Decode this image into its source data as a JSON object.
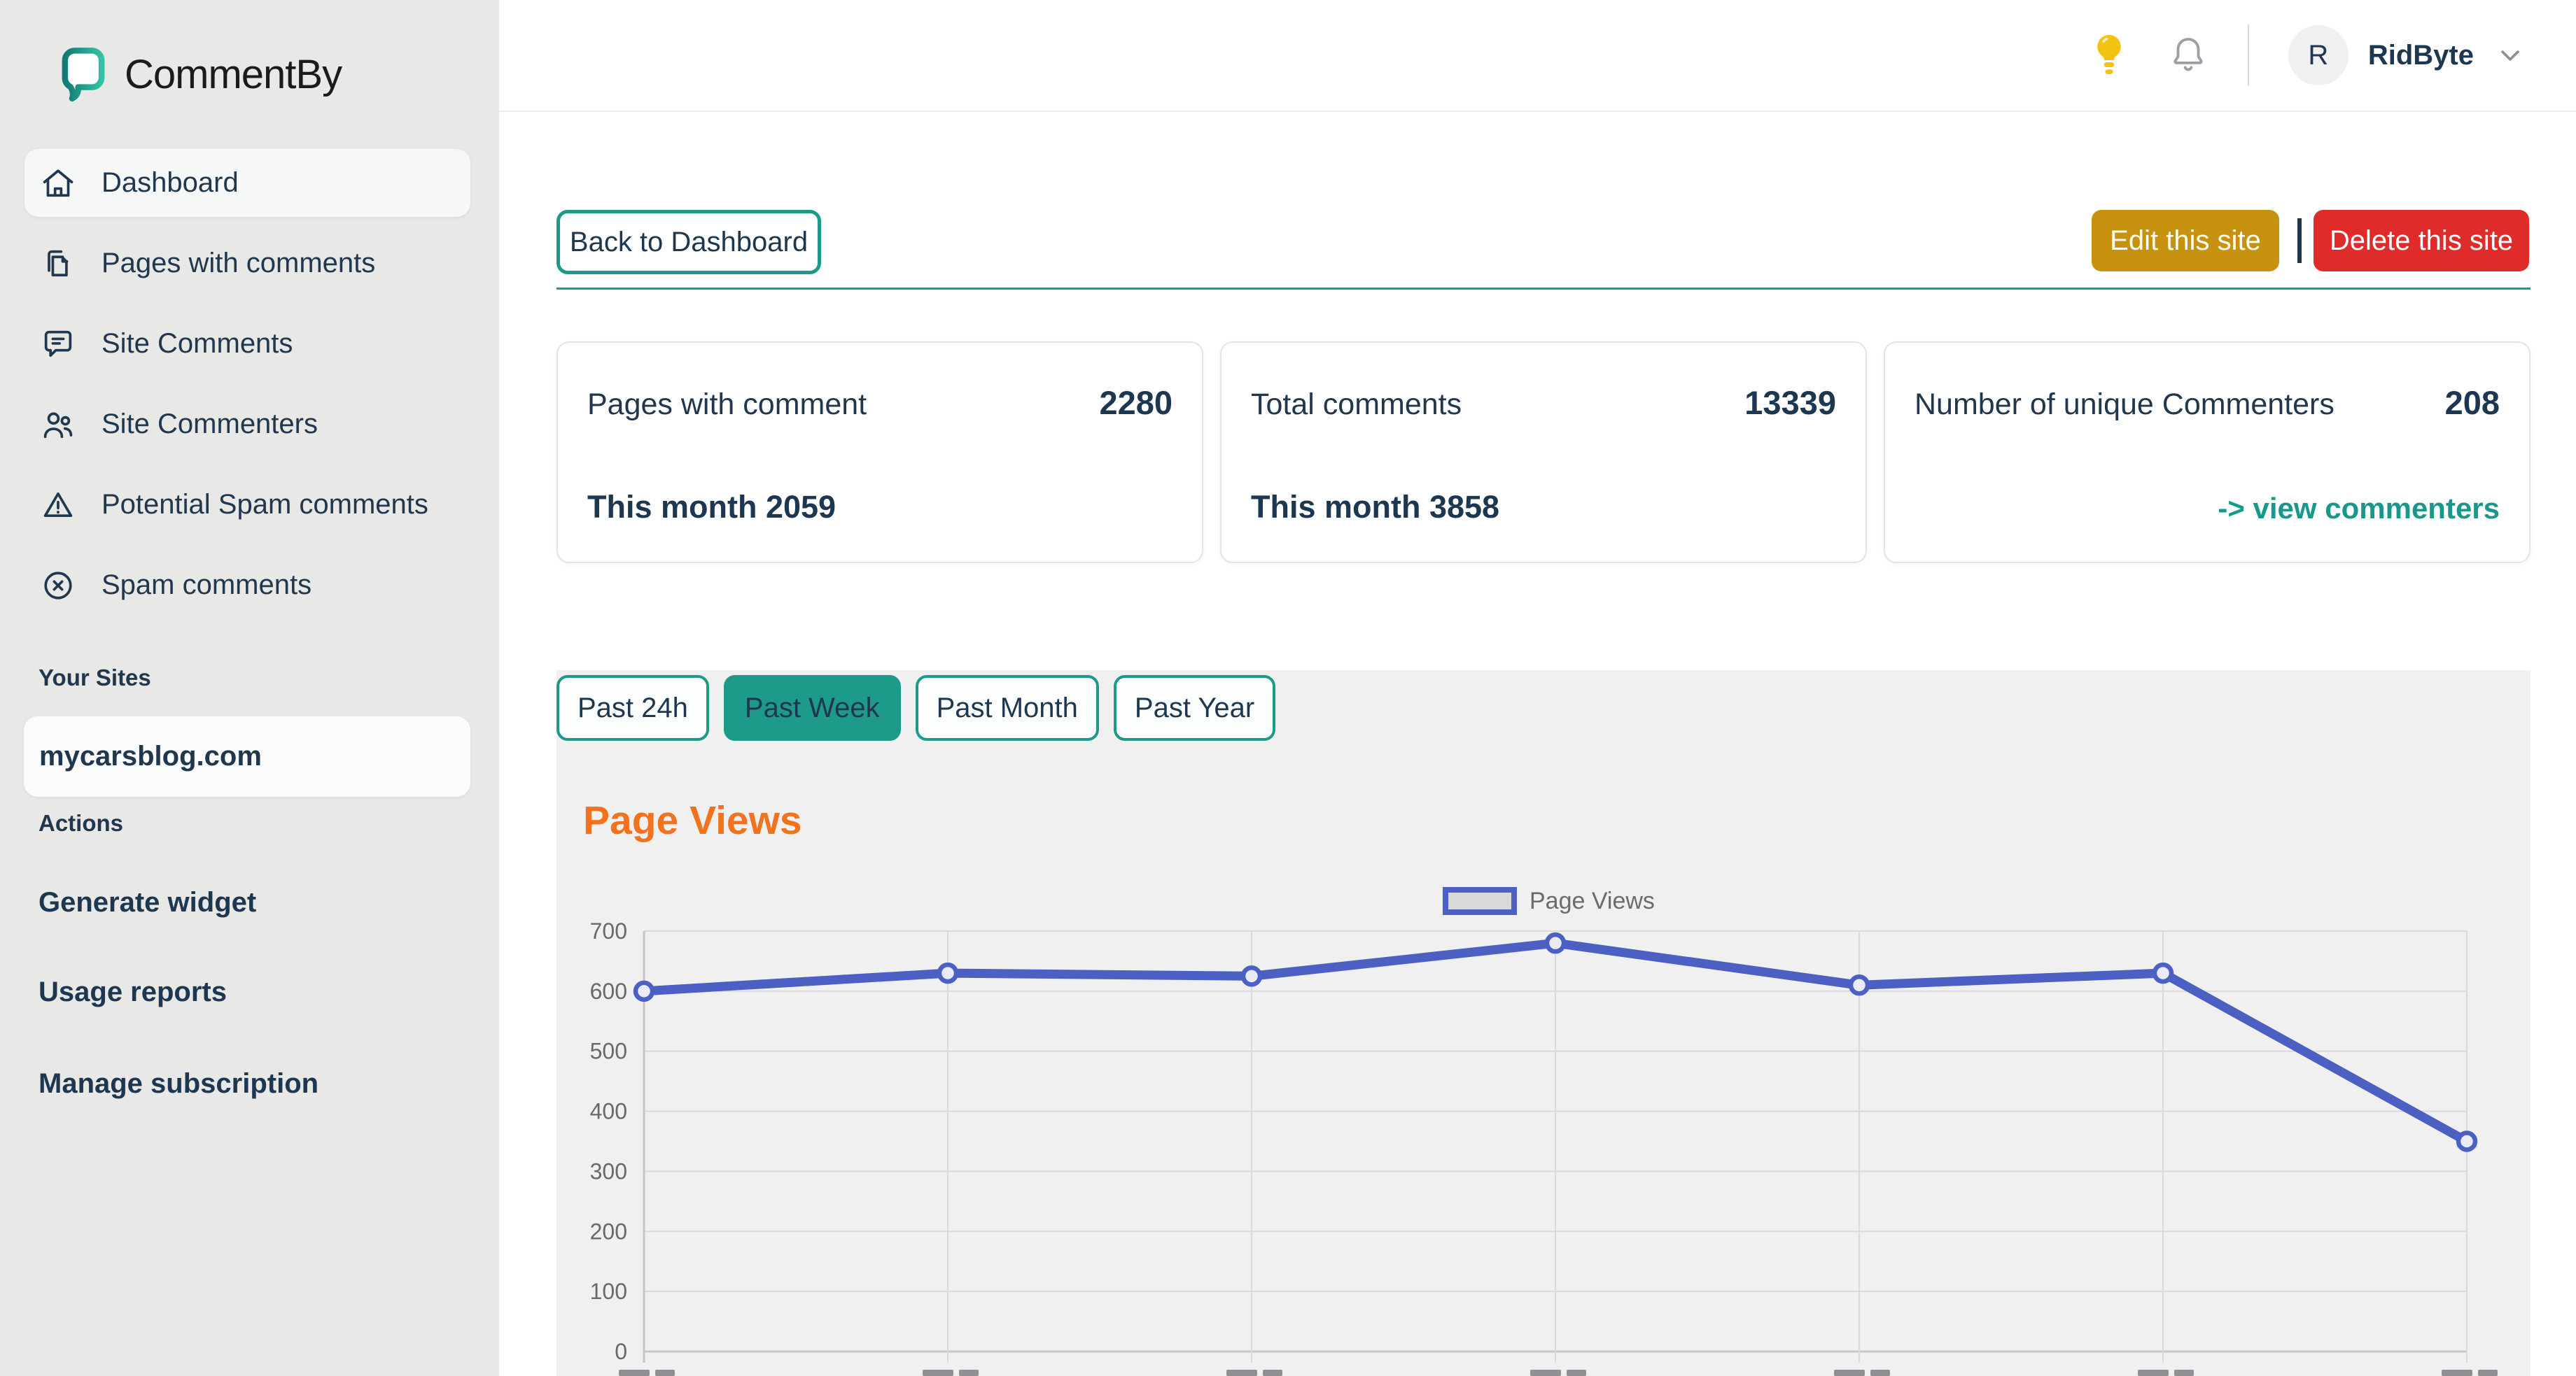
{
  "brand": {
    "name": "CommentBy",
    "logo_icon": "speech-bubble",
    "accent_teal": "#1e9a8b"
  },
  "header": {
    "icons": {
      "lightbulb": "lightbulb-icon",
      "bell": "notifications-bell-icon",
      "chevron": "chevron-down-icon"
    },
    "user": {
      "initial": "R",
      "name": "RidByte"
    }
  },
  "sidebar": {
    "nav": [
      {
        "label": "Dashboard",
        "icon": "home-icon",
        "active": true
      },
      {
        "label": "Pages with comments",
        "icon": "pages-icon",
        "active": false
      },
      {
        "label": "Site Comments",
        "icon": "comment-bubble-icon",
        "active": false
      },
      {
        "label": "Site Commenters",
        "icon": "users-icon",
        "active": false
      },
      {
        "label": "Potential Spam comments",
        "icon": "warning-triangle-icon",
        "active": false
      },
      {
        "label": "Spam comments",
        "icon": "circle-x-icon",
        "active": false
      }
    ],
    "sections": {
      "your_sites": "Your Sites",
      "actions": "Actions"
    },
    "sites": [
      {
        "domain": "mycarsblog.com"
      }
    ],
    "action_links": [
      {
        "label": "Generate widget"
      },
      {
        "label": "Usage reports"
      },
      {
        "label": "Manage subscription"
      }
    ]
  },
  "toolbar": {
    "back_label": "Back to Dashboard",
    "edit_label": "Edit this site",
    "separator": "|",
    "delete_label": "Delete this site",
    "edit_color": "#c6920f",
    "delete_color": "#e02b2b"
  },
  "stats": [
    {
      "title": "Pages with comment",
      "value": "2280",
      "sub": "This month 2059"
    },
    {
      "title": "Total comments",
      "value": "13339",
      "sub": "This month 3858"
    },
    {
      "title": "Number of unique Commenters",
      "value": "208",
      "link": "-> view commenters"
    }
  ],
  "filters": [
    {
      "label": "Past 24h",
      "active": false
    },
    {
      "label": "Past Week",
      "active": true
    },
    {
      "label": "Past Month",
      "active": false
    },
    {
      "label": "Past Year",
      "active": false
    }
  ],
  "chart_section": {
    "heading": "Page Views"
  },
  "chart_data": {
    "type": "line",
    "title": "Page Views",
    "legend": "Page Views",
    "legend_position": "top-center",
    "categories": [
      "",
      "",
      "",
      "",
      "",
      "",
      ""
    ],
    "x_labels_clipped": true,
    "values": [
      600,
      630,
      625,
      680,
      610,
      630,
      350
    ],
    "ylim": [
      0,
      700
    ],
    "yticks": [
      0,
      100,
      200,
      300,
      400,
      500,
      600,
      700
    ],
    "grid": true,
    "line_color": "#4c60c4",
    "point_fill": "#e9ecf7",
    "gridline_color": "#dadadd",
    "tick_color": "#68686d"
  },
  "colors": {
    "sidebar_bg": "#e8e8e7",
    "panel_bg": "#f0f0f1",
    "navy_text": "#1e3750",
    "heading_orange": "#f1731f",
    "link_teal": "#18988b",
    "lightbulb_yellow": "#f4c211"
  }
}
